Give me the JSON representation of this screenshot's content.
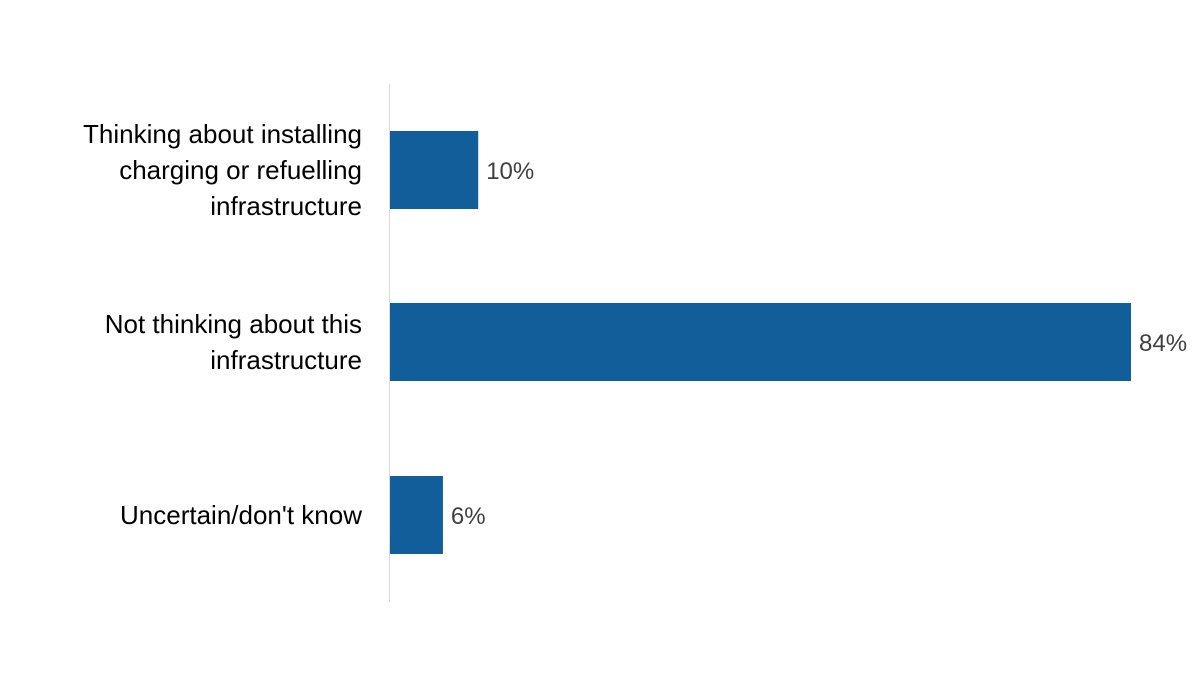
{
  "chart_data": {
    "type": "bar",
    "orientation": "horizontal",
    "categories": [
      [
        "Thinking about installing",
        "charging or refuelling",
        "infrastructure"
      ],
      [
        "Not thinking about this",
        "infrastructure"
      ],
      [
        "Uncertain/don't know"
      ]
    ],
    "values": [
      10,
      84,
      6
    ],
    "data_labels": [
      "10%",
      "84%",
      "6%"
    ],
    "value_unit": "%",
    "xlim": [
      0,
      84
    ],
    "grid": false,
    "legend": "none",
    "bar_color": "#125E9A",
    "axis_color": "#D9D9D9",
    "label_color": "#000000",
    "data_label_color": "#404040"
  }
}
